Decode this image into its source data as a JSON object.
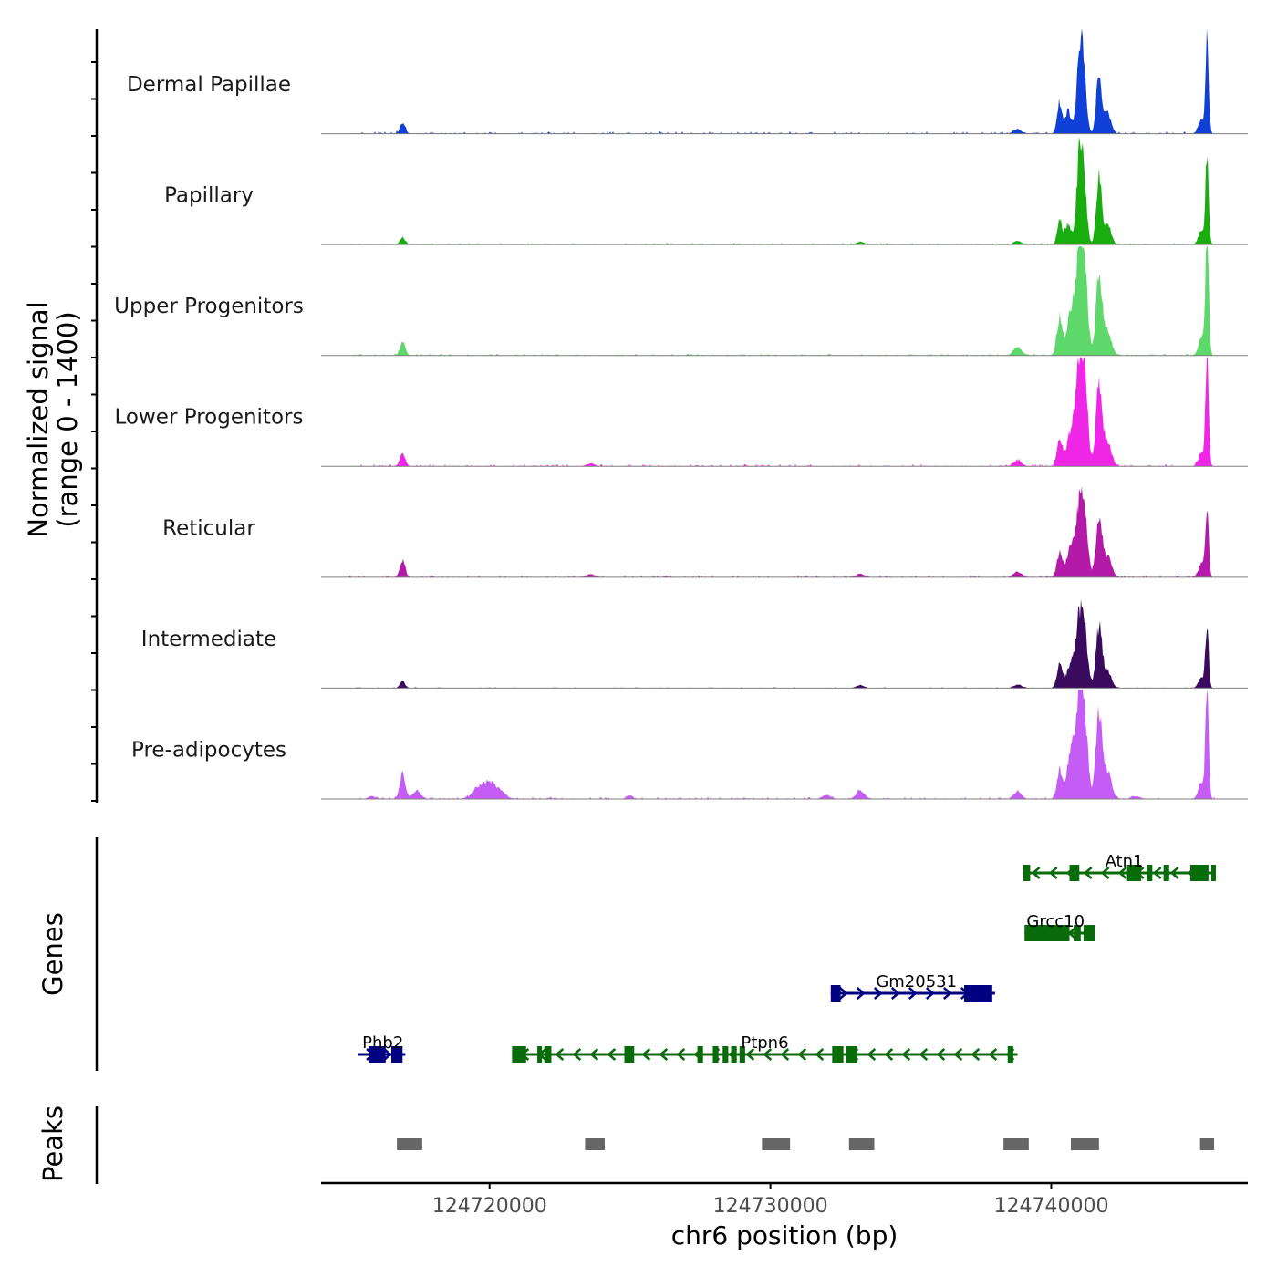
{
  "chart_data": {
    "type": "area",
    "chromosome": "chr6",
    "xlim": [
      124714000,
      124747000
    ],
    "xticks": [
      124720000,
      124730000,
      124740000
    ],
    "xtick_labels": [
      "124720000",
      "124730000",
      "124740000"
    ],
    "xlabel": "chr6 position (bp)",
    "ylabel_line1": "Normalized signal",
    "ylabel_line2": "(range 0 - 1400)",
    "ylim": [
      0,
      1400
    ],
    "tracks": [
      {
        "name": "Dermal Papillae",
        "color": "#1040d8",
        "baseline": 30,
        "peaks": [
          [
            124716900,
            150,
            130
          ],
          [
            124738800,
            60,
            200
          ],
          [
            124740300,
            450,
            120
          ],
          [
            124740600,
            330,
            150
          ],
          [
            124741000,
            1000,
            150
          ],
          [
            124741150,
            800,
            150
          ],
          [
            124741700,
            900,
            130
          ],
          [
            124742000,
            300,
            180
          ],
          [
            124745550,
            1350,
            80
          ],
          [
            124745350,
            200,
            150
          ]
        ]
      },
      {
        "name": "Papillary",
        "color": "#1aad10",
        "baseline": 20,
        "peaks": [
          [
            124716900,
            100,
            130
          ],
          [
            124733200,
            40,
            200
          ],
          [
            124738800,
            50,
            200
          ],
          [
            124740300,
            380,
            120
          ],
          [
            124740600,
            300,
            150
          ],
          [
            124741000,
            1100,
            150
          ],
          [
            124741150,
            900,
            150
          ],
          [
            124741700,
            1000,
            130
          ],
          [
            124742000,
            300,
            180
          ],
          [
            124745550,
            1350,
            80
          ],
          [
            124745350,
            200,
            150
          ]
        ]
      },
      {
        "name": "Upper Progenitors",
        "color": "#5ed86a",
        "baseline": 25,
        "peaks": [
          [
            124716900,
            200,
            130
          ],
          [
            124738800,
            120,
            200
          ],
          [
            124740300,
            550,
            140
          ],
          [
            124740700,
            600,
            200
          ],
          [
            124741000,
            1400,
            180
          ],
          [
            124741200,
            1000,
            160
          ],
          [
            124741700,
            1200,
            150
          ],
          [
            124742000,
            350,
            200
          ],
          [
            124745550,
            1950,
            80
          ],
          [
            124745350,
            250,
            150
          ]
        ]
      },
      {
        "name": "Lower Progenitors",
        "color": "#ef26e6",
        "baseline": 30,
        "peaks": [
          [
            124716900,
            200,
            130
          ],
          [
            124723600,
            40,
            200
          ],
          [
            124738800,
            80,
            200
          ],
          [
            124740300,
            380,
            140
          ],
          [
            124740700,
            500,
            200
          ],
          [
            124741000,
            1450,
            170
          ],
          [
            124741200,
            1050,
            160
          ],
          [
            124741700,
            1200,
            150
          ],
          [
            124742000,
            350,
            200
          ],
          [
            124745550,
            1650,
            80
          ],
          [
            124745350,
            200,
            150
          ]
        ]
      },
      {
        "name": "Reticular",
        "color": "#b31aa8",
        "baseline": 25,
        "peaks": [
          [
            124716900,
            250,
            130
          ],
          [
            124723600,
            40,
            200
          ],
          [
            124733200,
            50,
            200
          ],
          [
            124738800,
            80,
            200
          ],
          [
            124740300,
            350,
            140
          ],
          [
            124740700,
            450,
            200
          ],
          [
            124741000,
            950,
            170
          ],
          [
            124741200,
            750,
            160
          ],
          [
            124741700,
            850,
            150
          ],
          [
            124742000,
            300,
            200
          ],
          [
            124745550,
            1000,
            80
          ],
          [
            124745350,
            200,
            150
          ]
        ]
      },
      {
        "name": "Intermediate",
        "color": "#3a0a5e",
        "baseline": 15,
        "peaks": [
          [
            124716900,
            100,
            130
          ],
          [
            124733200,
            40,
            200
          ],
          [
            124738800,
            50,
            200
          ],
          [
            124740300,
            350,
            140
          ],
          [
            124740700,
            350,
            200
          ],
          [
            124741000,
            950,
            170
          ],
          [
            124741200,
            700,
            160
          ],
          [
            124741700,
            900,
            150
          ],
          [
            124742000,
            250,
            200
          ],
          [
            124745550,
            950,
            80
          ],
          [
            124745350,
            150,
            150
          ]
        ]
      },
      {
        "name": "Pre-adipocytes",
        "color": "#c55cf5",
        "baseline": 30,
        "peaks": [
          [
            124715800,
            40,
            150
          ],
          [
            124716900,
            350,
            140
          ],
          [
            124717400,
            120,
            200
          ],
          [
            124719600,
            150,
            300
          ],
          [
            124720000,
            220,
            300
          ],
          [
            124720400,
            100,
            250
          ],
          [
            124725000,
            50,
            150
          ],
          [
            124732000,
            60,
            200
          ],
          [
            124733200,
            120,
            200
          ],
          [
            124738800,
            100,
            200
          ],
          [
            124740300,
            400,
            140
          ],
          [
            124740700,
            700,
            200
          ],
          [
            124741000,
            1400,
            170
          ],
          [
            124741200,
            1000,
            160
          ],
          [
            124741700,
            1300,
            150
          ],
          [
            124742000,
            400,
            200
          ],
          [
            124743000,
            40,
            200
          ],
          [
            124745550,
            1650,
            80
          ],
          [
            124745350,
            250,
            150
          ]
        ]
      }
    ],
    "genes_label": "Genes",
    "genes": [
      {
        "name": "Atn1",
        "strand": "-",
        "color": "#0a6b0a",
        "start": 124739000,
        "end": 124745800,
        "row": 1,
        "exons": [
          [
            124739000,
            124739250
          ],
          [
            124740650,
            124741000
          ],
          [
            124742700,
            124743200
          ],
          [
            124743400,
            124743600
          ],
          [
            124744000,
            124744200
          ],
          [
            124744950,
            124745600
          ],
          [
            124745700,
            124745800
          ]
        ]
      },
      {
        "name": "Grcc10",
        "strand": "-",
        "color": "#0a6b0a",
        "start": 124739050,
        "end": 124741550,
        "row": 2,
        "exons": [
          [
            124739050,
            124740650
          ],
          [
            124740800,
            124741050
          ],
          [
            124741150,
            124741550
          ]
        ]
      },
      {
        "name": "Gm20531",
        "strand": "+",
        "color": "#000080",
        "start": 124732150,
        "end": 124738000,
        "row": 3,
        "exons": [
          [
            124732150,
            124732500
          ],
          [
            124736900,
            124737900
          ]
        ]
      },
      {
        "name": "Phb2",
        "strand": "+",
        "color": "#000080",
        "start": 124715300,
        "end": 124717000,
        "row": 4,
        "exons": [
          [
            124715700,
            124716300
          ],
          [
            124716500,
            124716900
          ]
        ]
      },
      {
        "name": "Ptpn6",
        "strand": "-",
        "color": "#0a6b0a",
        "start": 124720800,
        "end": 124738800,
        "row": 4,
        "exons": [
          [
            124720800,
            124721300
          ],
          [
            124721700,
            124721850
          ],
          [
            124721950,
            124722200
          ],
          [
            124724800,
            124725150
          ],
          [
            124727400,
            124727600
          ],
          [
            124727950,
            124728150
          ],
          [
            124728300,
            124728500
          ],
          [
            124728600,
            124728800
          ],
          [
            124728900,
            124729100
          ],
          [
            124732200,
            124732600
          ],
          [
            124732700,
            124733100
          ],
          [
            124738450,
            124738650
          ]
        ]
      }
    ],
    "peaks_label": "Peaks",
    "peaks": [
      [
        124716700,
        124717600
      ],
      [
        124723400,
        124724100
      ],
      [
        124729700,
        124730700
      ],
      [
        124732800,
        124733700
      ],
      [
        124738300,
        124739200
      ],
      [
        124740700,
        124741700
      ],
      [
        124745300,
        124745800
      ]
    ]
  }
}
